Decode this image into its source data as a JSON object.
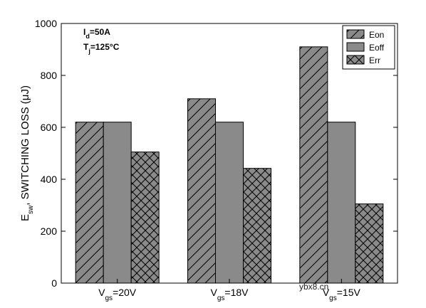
{
  "chart_data": {
    "type": "bar",
    "categories": [
      {
        "main": "V",
        "sub": "gs",
        "tail": "=20V"
      },
      {
        "main": "V",
        "sub": "gs",
        "tail": "=18V"
      },
      {
        "main": "V",
        "sub": "gs",
        "tail": "=15V"
      }
    ],
    "series": [
      {
        "name": "Eon",
        "values": [
          620,
          710,
          910
        ],
        "pattern": "diagonal"
      },
      {
        "name": "Eoff",
        "values": [
          620,
          620,
          620
        ],
        "pattern": "solid"
      },
      {
        "name": "Err",
        "values": [
          505,
          442,
          305
        ],
        "pattern": "crosshatch"
      }
    ],
    "ylabel": {
      "main": "E",
      "sub": "sw",
      "tail": ", SWITCHING LOSS (μJ)"
    },
    "xlabel": "",
    "title": "",
    "ylim": [
      0,
      1000
    ],
    "yticks": [
      0,
      200,
      400,
      600,
      800,
      1000
    ],
    "grid": false,
    "legend_position": "top-right",
    "annotations": [
      {
        "main": "I",
        "sub": "d",
        "tail": "=50A"
      },
      {
        "main": "T",
        "sub": "j",
        "tail": "=125°C"
      }
    ],
    "watermark": "ybx8.cn",
    "colors": {
      "bar_fill": "#8a8a8a",
      "edge": "#000000",
      "background": "#ffffff"
    }
  }
}
